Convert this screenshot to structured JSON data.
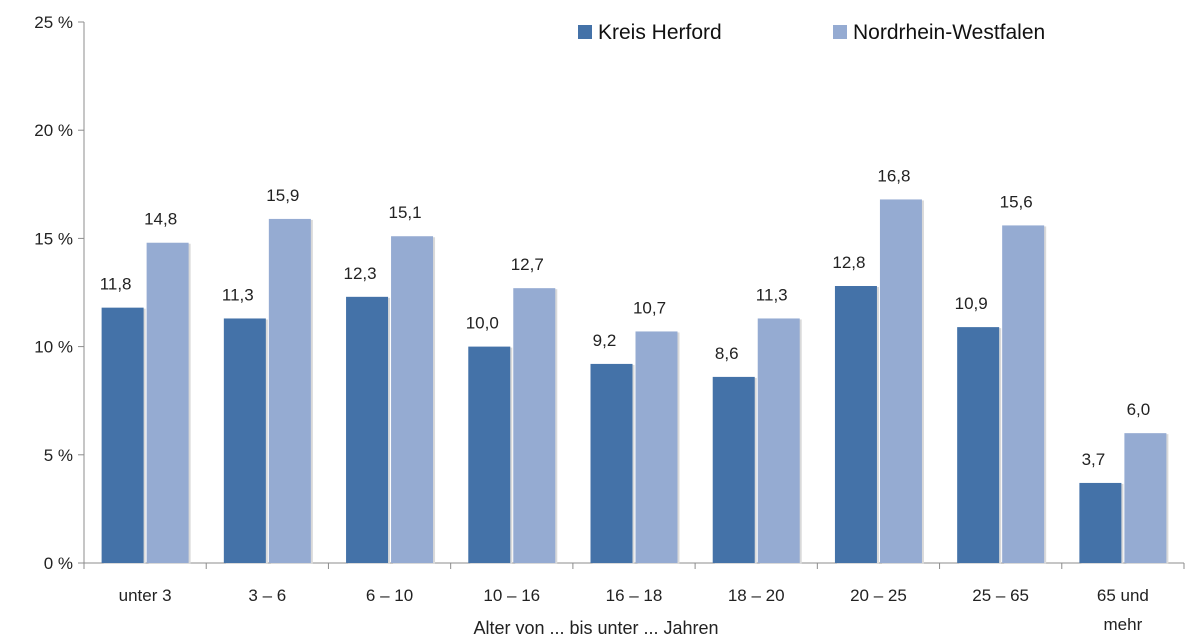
{
  "chart_data": {
    "type": "bar",
    "categories": [
      "unter 3",
      "3 –  6",
      "6 – 10",
      "10 – 16",
      "16 – 18",
      "18 – 20",
      "20 – 25",
      "25 – 65",
      "65 und mehr"
    ],
    "series": [
      {
        "name": "Kreis Herford",
        "color": "#4472a8",
        "values": [
          11.8,
          11.3,
          12.3,
          10.0,
          9.2,
          8.6,
          12.8,
          10.9,
          3.7
        ],
        "labels": [
          "11,8",
          "11,3",
          "12,3",
          "10,0",
          "9,2",
          "8,6",
          "12,8",
          "10,9",
          "3,7"
        ]
      },
      {
        "name": "Nordrhein-Westfalen",
        "color": "#95abd2",
        "values": [
          14.8,
          15.9,
          15.1,
          12.7,
          10.7,
          11.3,
          16.8,
          15.6,
          6.0
        ],
        "labels": [
          "14,8",
          "15,9",
          "15,1",
          "12,7",
          "10,7",
          "11,3",
          "16,8",
          "15,6",
          "6,0"
        ]
      }
    ],
    "y_ticks": [
      0,
      5,
      10,
      15,
      20,
      25
    ],
    "y_tick_labels": [
      "0 %",
      "5 %",
      "10 %",
      "15 %",
      "20 %",
      "25 %"
    ],
    "ylim": [
      0,
      25
    ],
    "xlabel": "Alter von ... bis unter ... Jahren",
    "ylabel": "",
    "title": "",
    "grid": false,
    "legend_position": "top-right"
  }
}
